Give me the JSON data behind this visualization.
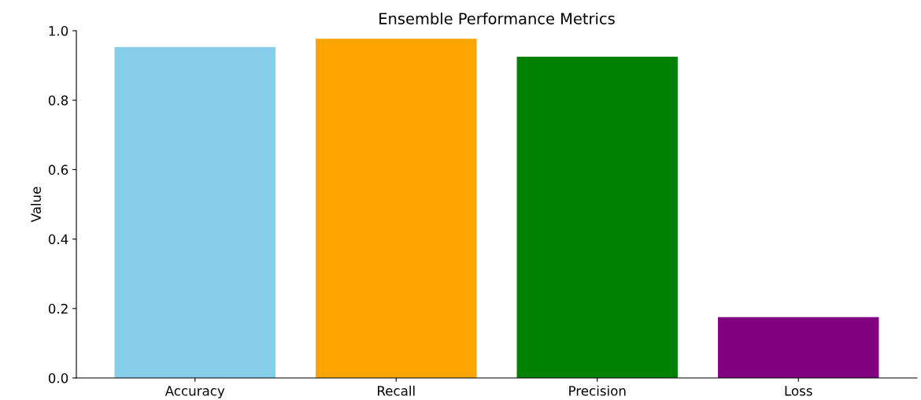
{
  "chart_data": {
    "type": "bar",
    "title": "Ensemble Performance Metrics",
    "ylabel": "Value",
    "categories": [
      "Accuracy",
      "Recall",
      "Precision",
      "Loss"
    ],
    "values": [
      0.953,
      0.977,
      0.925,
      0.175
    ],
    "colors": [
      "#87ceeb",
      "#ffa500",
      "#008000",
      "#800080"
    ],
    "ylim": [
      0,
      1
    ],
    "yticks": [
      {
        "value": 0,
        "label": "0.0"
      },
      0.2,
      0.4,
      0.6,
      0.8,
      {
        "value": 1,
        "label": "1.0"
      }
    ],
    "grid": false
  }
}
